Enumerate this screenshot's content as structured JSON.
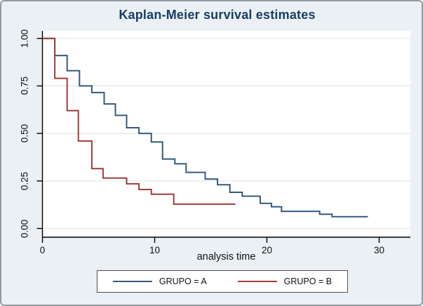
{
  "title": "Kaplan-Meier survival estimates",
  "x_axis": {
    "label": "analysis time",
    "tick_labels": [
      "0",
      "10",
      "20",
      "30"
    ],
    "tick_values": [
      0,
      10,
      20,
      30
    ]
  },
  "y_axis": {
    "tick_labels": [
      "0.00",
      "0.25",
      "0.50",
      "0.75",
      "1.00"
    ],
    "tick_values": [
      0,
      0.25,
      0.5,
      0.75,
      1
    ]
  },
  "legend": {
    "items": [
      {
        "label": "GRUPO = A",
        "color": "#35597e"
      },
      {
        "label": "GRUPO = B",
        "color": "#9e3d3b"
      }
    ]
  },
  "colors": {
    "figure_background": "#eaf0f4",
    "plot_background": "#ffffff",
    "grid": "#dde8ee",
    "axis": "#000000",
    "title": "#1a3c64",
    "border": "#949a9e",
    "series_a": "#35597e",
    "series_b": "#9e3d3b"
  },
  "chart_data": {
    "type": "line",
    "subtype": "step-survival",
    "title": "Kaplan-Meier survival estimates",
    "xlabel": "analysis time",
    "ylabel": "",
    "xlim": [
      0,
      30
    ],
    "ylim": [
      0,
      1
    ],
    "grid": true,
    "legend_position": "bottom",
    "series": [
      {
        "name": "GRUPO = A",
        "color": "#35597e",
        "points": [
          [
            0,
            1.0
          ],
          [
            1.1,
            0.91
          ],
          [
            2.2,
            0.83
          ],
          [
            3.3,
            0.75
          ],
          [
            4.4,
            0.715
          ],
          [
            5.5,
            0.655
          ],
          [
            6.5,
            0.595
          ],
          [
            7.5,
            0.53
          ],
          [
            8.6,
            0.5
          ],
          [
            9.7,
            0.455
          ],
          [
            10.7,
            0.365
          ],
          [
            11.8,
            0.34
          ],
          [
            12.8,
            0.295
          ],
          [
            14.5,
            0.26
          ],
          [
            15.6,
            0.23
          ],
          [
            16.7,
            0.19
          ],
          [
            17.8,
            0.17
          ],
          [
            19.4,
            0.132
          ],
          [
            20.4,
            0.114
          ],
          [
            21.3,
            0.09
          ],
          [
            24.7,
            0.075
          ],
          [
            25.8,
            0.062
          ]
        ],
        "end_time": 29.0
      },
      {
        "name": "GRUPO = B",
        "color": "#9e3d3b",
        "points": [
          [
            0,
            1.0
          ],
          [
            1.1,
            0.79
          ],
          [
            2.2,
            0.62
          ],
          [
            3.2,
            0.46
          ],
          [
            4.4,
            0.315
          ],
          [
            5.4,
            0.265
          ],
          [
            7.5,
            0.235
          ],
          [
            8.6,
            0.205
          ],
          [
            9.7,
            0.18
          ],
          [
            11.7,
            0.128
          ]
        ],
        "end_time": 17.2
      }
    ]
  }
}
